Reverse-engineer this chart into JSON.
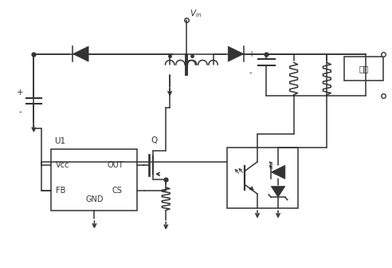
{
  "bg_color": "#ffffff",
  "line_color": "#333333",
  "lw": 1.1,
  "fig_width": 4.92,
  "fig_height": 3.36,
  "xlim": [
    0,
    10
  ],
  "ylim": [
    0,
    7
  ]
}
